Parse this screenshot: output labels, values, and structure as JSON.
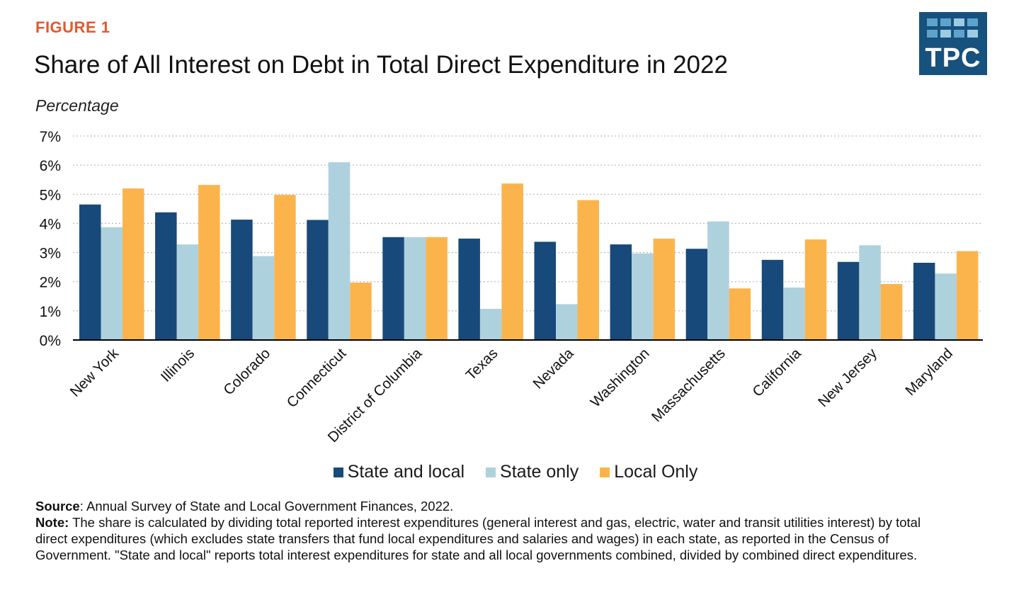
{
  "header": {
    "figure_label": "FIGURE 1",
    "title": "Share of All Interest on Debt in Total Direct Expenditure in 2022",
    "logo_text": "TPC"
  },
  "colors": {
    "state_and_local": "#17497a",
    "state_only": "#aed1de",
    "local_only": "#fbb44c",
    "grid": "#bdbdbd",
    "axis": "#000000"
  },
  "chart_data": {
    "type": "bar",
    "ylabel": "Percentage",
    "ylim": [
      0,
      7
    ],
    "yticks": [
      "0%",
      "1%",
      "2%",
      "3%",
      "4%",
      "5%",
      "6%",
      "7%"
    ],
    "grid": true,
    "legend_position": "bottom",
    "categories": [
      "New York",
      "Illinois",
      "Colorado",
      "Connecticut",
      "District of Columbia",
      "Texas",
      "Nevada",
      "Washington",
      "Massachusetts",
      "California",
      "New Jersey",
      "Maryland"
    ],
    "series": [
      {
        "name": "State and local",
        "values": [
          4.65,
          4.38,
          4.13,
          4.12,
          3.53,
          3.48,
          3.37,
          3.28,
          3.13,
          2.75,
          2.68,
          2.65
        ]
      },
      {
        "name": "State only",
        "values": [
          3.87,
          3.28,
          2.88,
          6.1,
          3.53,
          1.07,
          1.23,
          2.97,
          4.07,
          1.8,
          3.25,
          2.28
        ]
      },
      {
        "name": "Local Only",
        "values": [
          5.2,
          5.32,
          4.98,
          1.97,
          3.53,
          5.37,
          4.8,
          3.48,
          1.77,
          3.45,
          1.92,
          3.05
        ]
      }
    ]
  },
  "footnotes": {
    "source_label": "Source",
    "source_text": ": Annual Survey of State and Local Government Finances, 2022.",
    "note_label": "Note:",
    "note_text": " The share is calculated by dividing total reported interest expenditures (general interest and gas, electric, water and transit utilities interest) by total direct expenditures (which excludes state transfers that fund local expenditures and salaries and wages) in each state, as reported in the Census of Government. \"State and local\" reports total interest expenditures for state and all local governments combined, divided by combined direct expenditures."
  }
}
